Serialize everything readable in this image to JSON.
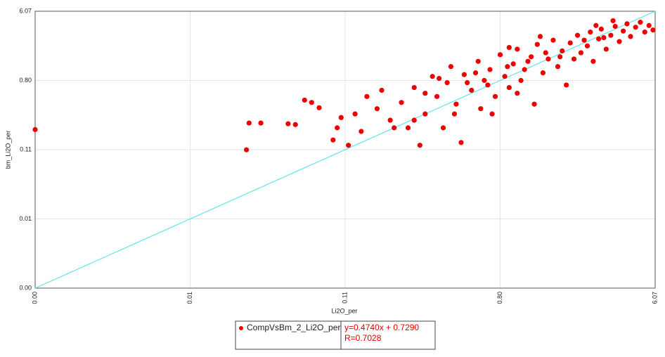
{
  "chart_data": {
    "type": "scatter",
    "xlabel": "Li2O_per",
    "ylabel": "bm_Li2O_per",
    "log_x": true,
    "log_y": true,
    "grid": true,
    "xlim": [
      0.00183,
      6.07
    ],
    "ylim": [
      0.00183,
      6.07
    ],
    "xticks": [
      {
        "value": 0.00183,
        "label": "0.00"
      },
      {
        "value": 0.0139,
        "label": "0.01"
      },
      {
        "value": 0.1054,
        "label": "0.11"
      },
      {
        "value": 0.8,
        "label": "0.80"
      },
      {
        "value": 6.07,
        "label": "6.07"
      }
    ],
    "yticks": [
      {
        "value": 0.00183,
        "label": "0.00"
      },
      {
        "value": 0.0139,
        "label": "0.01"
      },
      {
        "value": 0.1054,
        "label": "0.11"
      },
      {
        "value": 0.8,
        "label": "0.80"
      },
      {
        "value": 6.07,
        "label": "6.07"
      }
    ],
    "identity_line": true,
    "identity_color": "#5ee6e6",
    "legend": "bottom",
    "annotations": [
      "y=0.4740x + 0.7290",
      "R=0.7028"
    ],
    "series": [
      {
        "name": "CompVsBm_2_Li2O_per",
        "color": "#ee0000",
        "x": [
          0.00183,
          0.03,
          0.029,
          0.035,
          0.05,
          0.055,
          0.062,
          0.068,
          0.075,
          0.09,
          0.095,
          0.1,
          0.11,
          0.12,
          0.13,
          0.14,
          0.16,
          0.17,
          0.19,
          0.22,
          0.24,
          0.26,
          0.28,
          0.3,
          0.33,
          0.35,
          0.38,
          0.4,
          0.42,
          0.45,
          0.48,
          0.5,
          0.55,
          0.6,
          0.62,
          0.65,
          0.7,
          0.75,
          0.8,
          0.85,
          0.9,
          0.95,
          1.0,
          1.05,
          1.1,
          1.2,
          1.25,
          1.3,
          1.4,
          1.5,
          1.6,
          1.7,
          1.8,
          1.9,
          2.0,
          2.1,
          2.2,
          2.3,
          2.5,
          2.6,
          2.7,
          2.9,
          3.0,
          3.2,
          3.4,
          3.6,
          3.8,
          4.0,
          4.2,
          4.4,
          4.7,
          5.0,
          5.3,
          5.6,
          5.9,
          0.58,
          0.68,
          0.88,
          1.15,
          1.45,
          1.75,
          2.4,
          3.1,
          0.3,
          0.44,
          0.26,
          0.52,
          0.2,
          0.36,
          0.9,
          1.35,
          2.8,
          3.5,
          0.72,
          1.0
        ],
        "values": [
          0.19,
          0.23,
          0.105,
          0.23,
          0.225,
          0.22,
          0.45,
          0.42,
          0.36,
          0.14,
          0.2,
          0.27,
          0.12,
          0.3,
          0.18,
          0.5,
          0.35,
          0.6,
          0.25,
          0.42,
          0.2,
          0.65,
          0.12,
          0.3,
          0.9,
          0.5,
          0.2,
          0.75,
          1.2,
          0.4,
          0.13,
          0.95,
          0.6,
          1.4,
          0.35,
          0.8,
          1.1,
          0.5,
          1.7,
          0.9,
          0.65,
          1.3,
          2.0,
          0.8,
          1.1,
          1.6,
          0.4,
          2.3,
          1.0,
          1.5,
          2.6,
          1.2,
          1.9,
          0.7,
          2.4,
          1.5,
          3.0,
          1.8,
          2.2,
          3.3,
          1.4,
          2.7,
          3.6,
          2.0,
          3.0,
          3.9,
          2.5,
          3.4,
          4.2,
          2.9,
          3.8,
          4.4,
          3.3,
          4.0,
          3.5,
          1.0,
          0.7,
          1.2,
          1.4,
          1.8,
          1.6,
          2.6,
          2.8,
          0.55,
          0.3,
          0.25,
          0.75,
          0.2,
          0.85,
          2.1,
          2.9,
          4.0,
          4.6,
          0.3,
          0.55
        ]
      }
    ]
  }
}
